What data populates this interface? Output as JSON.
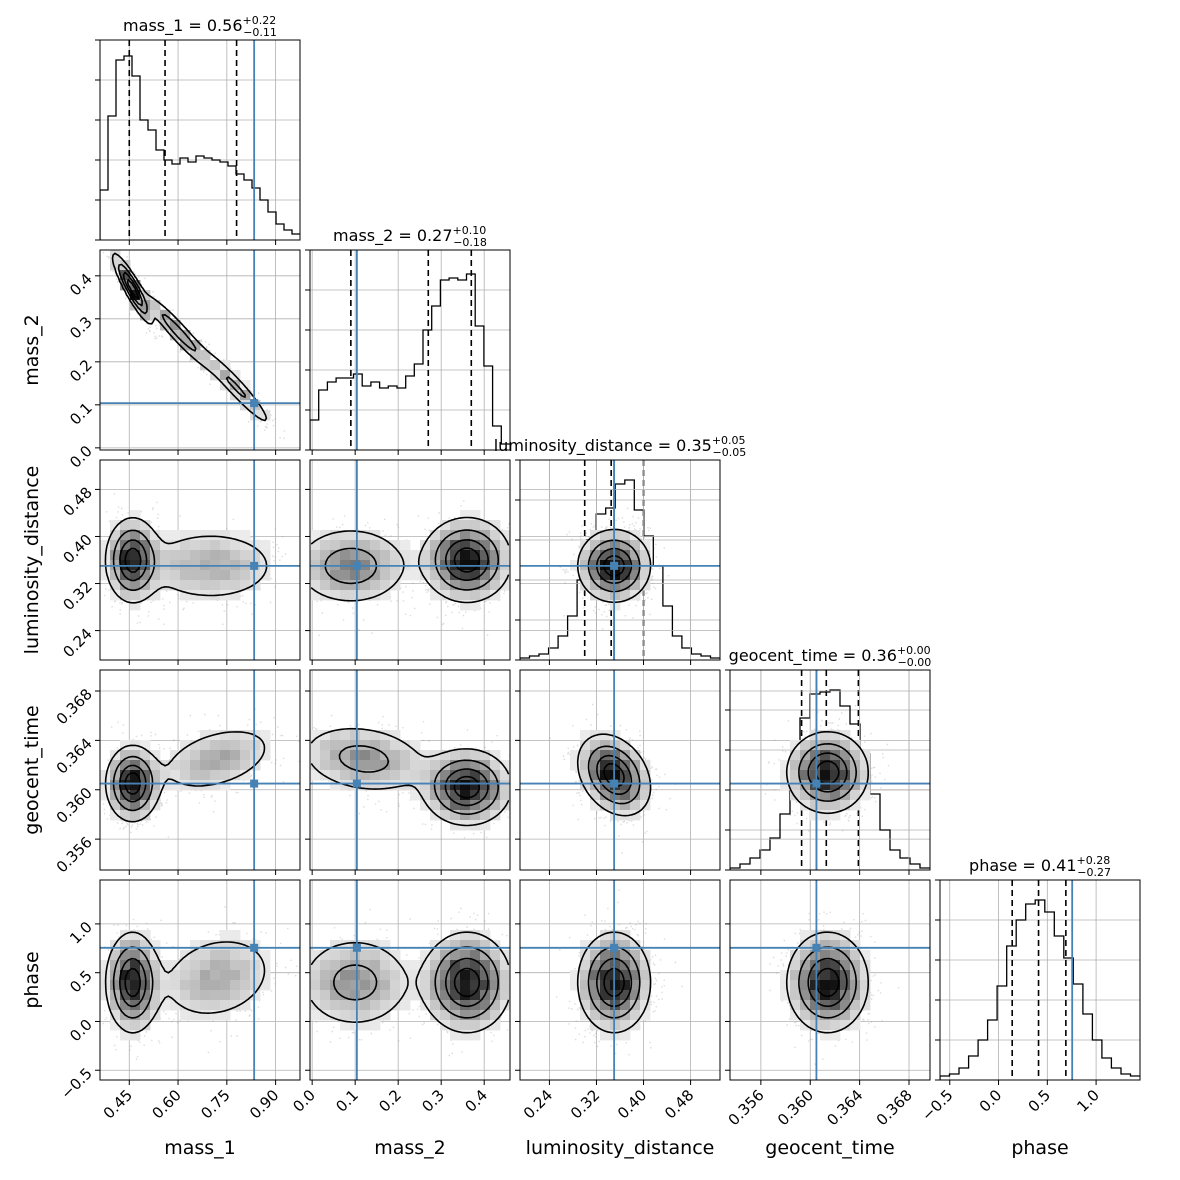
{
  "chart_data": {
    "type": "corner",
    "parameters": [
      {
        "name": "mass_1",
        "label": "mass_1",
        "range": [
          0.36,
          0.975
        ],
        "ticks": [
          "0.45",
          "0.60",
          "0.75",
          "0.90"
        ],
        "tick_values": [
          0.45,
          0.6,
          0.75,
          0.9
        ],
        "truth": 0.834,
        "quantiles": [
          0.45,
          0.56,
          0.78
        ],
        "title_prefix": "mass_1 = 0.56",
        "title_sup": "+0.22",
        "title_sub": "−0.11"
      },
      {
        "name": "mass_2",
        "label": "mass_2",
        "range": [
          -0.005,
          0.46
        ],
        "ticks": [
          "0.0",
          "0.1",
          "0.2",
          "0.3",
          "0.4"
        ],
        "tick_values": [
          0.0,
          0.1,
          0.2,
          0.3,
          0.4
        ],
        "truth": 0.104,
        "quantiles": [
          0.09,
          0.27,
          0.37
        ],
        "title_prefix": "mass_2 = 0.27",
        "title_sup": "+0.10",
        "title_sub": "−0.18"
      },
      {
        "name": "luminosity_distance",
        "label": "luminosity_distance",
        "range": [
          0.19,
          0.53
        ],
        "ticks": [
          "0.24",
          "0.32",
          "0.40",
          "0.48"
        ],
        "tick_values": [
          0.24,
          0.32,
          0.4,
          0.48
        ],
        "truth": 0.35,
        "quantiles": [
          0.3,
          0.345,
          0.4
        ],
        "title_prefix": "luminosity_distance = 0.35",
        "title_sup": "+0.05",
        "title_sub": "−0.05"
      },
      {
        "name": "geocent_time",
        "label": "geocent_time",
        "range": [
          0.3535,
          0.3697
        ],
        "ticks": [
          "0.356",
          "0.360",
          "0.364",
          "0.368"
        ],
        "tick_values": [
          0.356,
          0.36,
          0.364,
          0.368
        ],
        "truth": 0.3605,
        "quantiles": [
          0.3593,
          0.3613,
          0.3639
        ],
        "title_prefix": "geocent_time = 0.36",
        "title_sup": "+0.00",
        "title_sub": "−0.00"
      },
      {
        "name": "phase",
        "label": "phase",
        "range": [
          -0.6,
          1.45
        ],
        "ticks": [
          "−0.5",
          "0.0",
          "0.5",
          "1.0"
        ],
        "tick_values": [
          -0.5,
          0.0,
          0.5,
          1.0
        ],
        "truth": 0.755,
        "quantiles": [
          0.14,
          0.41,
          0.69
        ],
        "title_prefix": "phase = 0.41",
        "title_sup": "+0.28",
        "title_sub": "−0.27"
      }
    ],
    "histograms": [
      [
        0.25,
        0.62,
        0.9,
        0.92,
        0.82,
        0.6,
        0.55,
        0.45,
        0.4,
        0.38,
        0.41,
        0.39,
        0.42,
        0.41,
        0.4,
        0.39,
        0.37,
        0.33,
        0.3,
        0.26,
        0.2,
        0.14,
        0.08,
        0.05,
        0.03
      ],
      [
        0.15,
        0.3,
        0.34,
        0.36,
        0.36,
        0.38,
        0.32,
        0.34,
        0.31,
        0.32,
        0.31,
        0.37,
        0.43,
        0.6,
        0.72,
        0.85,
        0.86,
        0.85,
        0.88,
        0.62,
        0.42,
        0.12,
        0.03
      ],
      [
        0.01,
        0.02,
        0.03,
        0.06,
        0.12,
        0.22,
        0.4,
        0.6,
        0.73,
        0.76,
        0.88,
        0.9,
        0.75,
        0.62,
        0.47,
        0.27,
        0.12,
        0.06,
        0.03,
        0.02,
        0.01
      ],
      [
        0.01,
        0.03,
        0.06,
        0.1,
        0.16,
        0.28,
        0.5,
        0.76,
        0.88,
        0.89,
        0.9,
        0.82,
        0.73,
        0.58,
        0.38,
        0.2,
        0.1,
        0.06,
        0.03,
        0.01
      ],
      [
        0.02,
        0.03,
        0.06,
        0.12,
        0.2,
        0.3,
        0.47,
        0.67,
        0.8,
        0.88,
        0.9,
        0.84,
        0.72,
        0.61,
        0.48,
        0.33,
        0.2,
        0.11,
        0.06,
        0.03,
        0.02
      ]
    ],
    "pair_densities": [
      {
        "row": 1,
        "col": 0,
        "components": [
          {
            "mx": 0.46,
            "my": 0.37,
            "sx": 0.03,
            "sy": 0.04,
            "rho": -0.9,
            "w": 1.0
          },
          {
            "mx": 0.6,
            "my": 0.27,
            "sx": 0.06,
            "sy": 0.05,
            "rho": -0.95,
            "w": 0.5
          },
          {
            "mx": 0.78,
            "my": 0.14,
            "sx": 0.06,
            "sy": 0.05,
            "rho": -0.95,
            "w": 0.4
          }
        ]
      },
      {
        "row": 2,
        "col": 0,
        "components": [
          {
            "mx": 0.46,
            "my": 0.36,
            "sx": 0.04,
            "sy": 0.035,
            "rho": 0.0,
            "w": 1.0
          },
          {
            "mx": 0.7,
            "my": 0.35,
            "sx": 0.12,
            "sy": 0.035,
            "rho": 0.0,
            "w": 0.35
          }
        ]
      },
      {
        "row": 2,
        "col": 1,
        "components": [
          {
            "mx": 0.09,
            "my": 0.35,
            "sx": 0.07,
            "sy": 0.035,
            "rho": 0.0,
            "w": 0.5
          },
          {
            "mx": 0.36,
            "my": 0.36,
            "sx": 0.05,
            "sy": 0.035,
            "rho": 0.0,
            "w": 1.0
          }
        ]
      },
      {
        "row": 2,
        "col": 2,
        "components": [
          {
            "mx": 0.35,
            "my": 0.35,
            "sx": 0.03,
            "sy": 0.03,
            "rho": 0.0,
            "w": 1.0
          }
        ]
      },
      {
        "row": 3,
        "col": 0,
        "components": [
          {
            "mx": 0.46,
            "my": 0.3605,
            "sx": 0.04,
            "sy": 0.0015,
            "rho": 0.0,
            "w": 1.0
          },
          {
            "mx": 0.72,
            "my": 0.3625,
            "sx": 0.1,
            "sy": 0.0015,
            "rho": 0.4,
            "w": 0.35
          }
        ]
      },
      {
        "row": 3,
        "col": 1,
        "components": [
          {
            "mx": 0.12,
            "my": 0.3625,
            "sx": 0.08,
            "sy": 0.0015,
            "rho": -0.2,
            "w": 0.45
          },
          {
            "mx": 0.36,
            "my": 0.3602,
            "sx": 0.05,
            "sy": 0.0015,
            "rho": 0.0,
            "w": 1.0
          }
        ]
      },
      {
        "row": 3,
        "col": 2,
        "components": [
          {
            "mx": 0.35,
            "my": 0.3612,
            "sx": 0.03,
            "sy": 0.0016,
            "rho": -0.3,
            "w": 1.0
          }
        ]
      },
      {
        "row": 3,
        "col": 3,
        "components": [
          {
            "mx": 0.3614,
            "my": 0.3614,
            "sx": 0.0016,
            "sy": 0.0016,
            "rho": 0.0,
            "w": 1.0
          }
        ]
      },
      {
        "row": 4,
        "col": 0,
        "components": [
          {
            "mx": 0.46,
            "my": 0.4,
            "sx": 0.04,
            "sy": 0.25,
            "rho": 0.0,
            "w": 1.0
          },
          {
            "mx": 0.72,
            "my": 0.45,
            "sx": 0.1,
            "sy": 0.25,
            "rho": 0.2,
            "w": 0.35
          }
        ]
      },
      {
        "row": 4,
        "col": 1,
        "components": [
          {
            "mx": 0.1,
            "my": 0.4,
            "sx": 0.07,
            "sy": 0.25,
            "rho": 0.0,
            "w": 0.45
          },
          {
            "mx": 0.36,
            "my": 0.4,
            "sx": 0.05,
            "sy": 0.25,
            "rho": 0.0,
            "w": 1.0
          }
        ]
      },
      {
        "row": 4,
        "col": 2,
        "components": [
          {
            "mx": 0.35,
            "my": 0.4,
            "sx": 0.03,
            "sy": 0.25,
            "rho": 0.0,
            "w": 1.0
          }
        ]
      },
      {
        "row": 4,
        "col": 3,
        "components": [
          {
            "mx": 0.3614,
            "my": 0.4,
            "sx": 0.0016,
            "sy": 0.25,
            "rho": 0.0,
            "w": 1.0
          }
        ]
      }
    ],
    "colors": {
      "truth": "#4682b4",
      "hist": "#000000",
      "grid": "#b0b0b0",
      "density": "#000000",
      "points": "#9a9a9a"
    },
    "grid": true
  }
}
